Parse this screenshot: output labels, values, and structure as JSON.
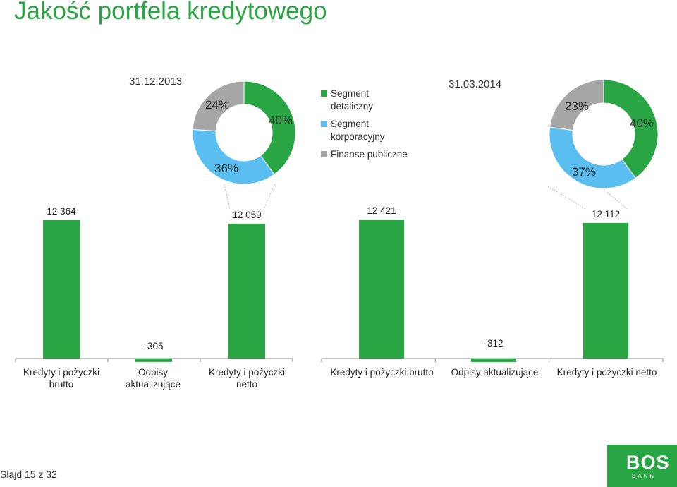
{
  "page": {
    "title": "Jakość portfela kredytowego",
    "slide_label": "Slajd 15 z 32",
    "logo_text": "BOS",
    "logo_sub": "BANK"
  },
  "colors": {
    "green": "#2aa544",
    "light_blue": "#5bbef0",
    "gray": "#a6a6a6",
    "title_green": "#2aa544"
  },
  "legend": [
    {
      "label": "Segment detaliczny",
      "color": "#2aa544"
    },
    {
      "label": "Segment korporacyjny",
      "color": "#5bbef0"
    },
    {
      "label": "Finanse publiczne",
      "color": "#a6a6a6"
    }
  ],
  "chart_data": [
    {
      "type": "pie",
      "variant": "donut",
      "title": "31.12.2013",
      "slices": [
        {
          "name": "Segment detaliczny",
          "value": 40,
          "label": "40%"
        },
        {
          "name": "Segment korporacyjny",
          "value": 36,
          "label": "36%"
        },
        {
          "name": "Finanse publiczne",
          "value": 24,
          "label": "24%"
        }
      ]
    },
    {
      "type": "pie",
      "variant": "donut",
      "title": "31.03.2014",
      "slices": [
        {
          "name": "Segment detaliczny",
          "value": 40,
          "label": "40%"
        },
        {
          "name": "Segment korporacyjny",
          "value": 37,
          "label": "37%"
        },
        {
          "name": "Finanse publiczne",
          "value": 23,
          "label": "23%"
        }
      ]
    },
    {
      "type": "bar",
      "categories": [
        "Kredyty i pożyczki brutto",
        "Odpisy aktualizujące",
        "Kredyty i pożyczki netto"
      ],
      "category_lines": [
        [
          "Kredyty i pożyczki",
          "brutto"
        ],
        [
          "Odpisy",
          "aktualizujące"
        ],
        [
          "Kredyty i pożyczki",
          "netto"
        ]
      ],
      "values": [
        12364,
        -305,
        12059
      ],
      "value_labels": [
        "12 364",
        "-305",
        "12 059"
      ]
    },
    {
      "type": "bar",
      "categories": [
        "Kredyty i pożyczki brutto",
        "Odpisy aktualizujące",
        "Kredyty i pożyczki netto"
      ],
      "category_lines": [
        [
          "Kredyty i pożyczki brutto"
        ],
        [
          "Odpisy aktualizujące"
        ],
        [
          "Kredyty i pożyczki netto"
        ]
      ],
      "values": [
        12421,
        -312,
        12112
      ],
      "value_labels": [
        "12 421",
        "-312",
        "12 112"
      ]
    }
  ]
}
